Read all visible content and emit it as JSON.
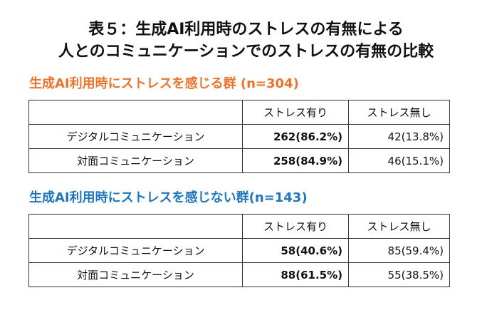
{
  "title": {
    "line1": "表５：生成AI利用時のストレスの有無による",
    "line2": "人とのコミュニケーションでのストレスの有無の比較"
  },
  "colors": {
    "section1": "#E8742E",
    "section2": "#1F76BA",
    "border": "#333333"
  },
  "sections": [
    {
      "heading": "生成AI利用時にストレスを感じる群 (n=304)",
      "columns": [
        "",
        "ストレス有り",
        "ストレス無し"
      ],
      "rows": [
        {
          "label": "デジタルコミュニケーション",
          "with_stress": "262(86.2%)",
          "without_stress": "42(13.8%)"
        },
        {
          "label": "対面コミュニケーション",
          "with_stress": "258(84.9%)",
          "without_stress": "46(15.1%)"
        }
      ]
    },
    {
      "heading": "生成AI利用時にストレスを感じない群(n=143)",
      "columns": [
        "",
        "ストレス有り",
        "ストレス無し"
      ],
      "rows": [
        {
          "label": "デジタルコミュニケーション",
          "with_stress": "58(40.6%)",
          "without_stress": "85(59.4%)"
        },
        {
          "label": "対面コミュニケーション",
          "with_stress": "88(61.5%)",
          "without_stress": "55(38.5%)"
        }
      ]
    }
  ]
}
